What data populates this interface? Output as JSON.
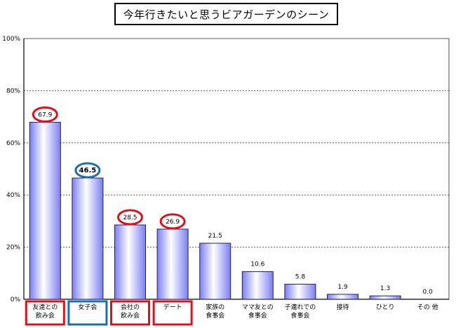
{
  "title": "今年行きたいと思うビアガーデンのシーン",
  "chart_data": {
    "type": "bar",
    "categories": [
      [
        "友達との",
        "飲み会"
      ],
      [
        "女子会"
      ],
      [
        "会社の",
        "飲み会"
      ],
      [
        "デート"
      ],
      [
        "家族の",
        "食事会"
      ],
      [
        "ママ友との",
        "食事会"
      ],
      [
        "子連れでの",
        "食事会"
      ],
      [
        "接待"
      ],
      [
        "ひとり"
      ],
      [
        "その 他"
      ]
    ],
    "values": [
      67.9,
      46.5,
      28.5,
      26.9,
      21.5,
      10.6,
      5.8,
      1.9,
      1.3,
      0.0
    ],
    "value_labels": [
      "67.9",
      "46.5",
      "28.5",
      "26.9",
      "21.5",
      "10.6",
      "5.8",
      "1.9",
      "1.3",
      "0.0"
    ],
    "ylim": [
      0,
      100
    ],
    "yticks": [
      "0%",
      "20%",
      "40%",
      "60%",
      "80%",
      "100%"
    ],
    "ytick_values": [
      0,
      20,
      40,
      60,
      80,
      100
    ],
    "grid": true,
    "highlights": [
      {
        "index": 0,
        "color": "#e0101a"
      },
      {
        "index": 1,
        "color": "#1a6fb0"
      },
      {
        "index": 2,
        "color": "#e0101a"
      },
      {
        "index": 3,
        "color": "#e0101a"
      }
    ],
    "colors": {
      "bar_light": "#ffffff",
      "bar_dark": "#7b7ff0",
      "bar_stroke": "#202060",
      "grid": "#555555"
    }
  }
}
